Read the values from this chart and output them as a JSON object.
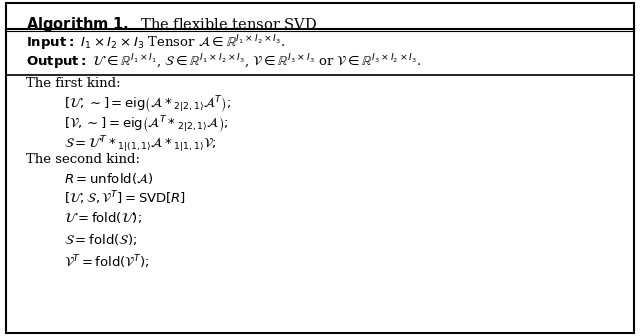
{
  "title": "Algorithm 1.  The flexible tensor SVD",
  "background_color": "#ffffff",
  "border_color": "#000000",
  "text_color": "#000000",
  "fig_width": 6.4,
  "fig_height": 3.36,
  "dpi": 100
}
